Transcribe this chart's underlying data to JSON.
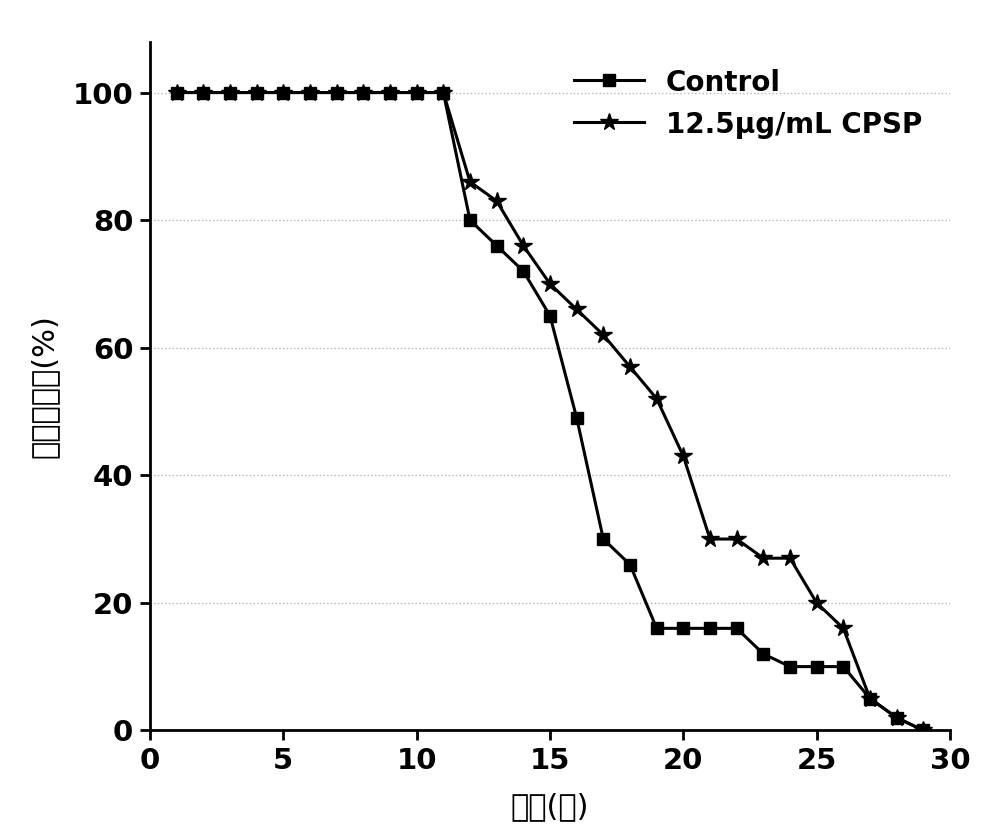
{
  "control_x": [
    1,
    2,
    3,
    4,
    5,
    6,
    7,
    8,
    9,
    10,
    11,
    12,
    13,
    14,
    15,
    16,
    17,
    18,
    19,
    20,
    21,
    22,
    23,
    24,
    25,
    26,
    27,
    28,
    29
  ],
  "control_y": [
    100,
    100,
    100,
    100,
    100,
    100,
    100,
    100,
    100,
    100,
    100,
    80,
    76,
    72,
    65,
    49,
    30,
    26,
    16,
    16,
    16,
    16,
    12,
    10,
    10,
    10,
    5,
    2,
    0
  ],
  "cpsp_x": [
    1,
    2,
    3,
    4,
    5,
    6,
    7,
    8,
    9,
    10,
    11,
    12,
    13,
    14,
    15,
    16,
    17,
    18,
    19,
    20,
    21,
    22,
    23,
    24,
    25,
    26,
    27,
    28,
    29
  ],
  "cpsp_y": [
    100,
    100,
    100,
    100,
    100,
    100,
    100,
    100,
    100,
    100,
    100,
    86,
    83,
    76,
    70,
    66,
    62,
    57,
    52,
    43,
    30,
    30,
    27,
    27,
    20,
    16,
    5,
    2,
    0
  ],
  "xlabel": "时间(天)",
  "ylabel": "线虫存活率(%)",
  "legend_control": "Control",
  "legend_cpsp": "12.5μg/mL CPSP",
  "xlim": [
    0,
    30
  ],
  "ylim": [
    0,
    108
  ],
  "xticks": [
    0,
    5,
    10,
    15,
    20,
    25,
    30
  ],
  "yticks": [
    0,
    20,
    40,
    60,
    80,
    100
  ],
  "background_color": "#ffffff",
  "line_color": "#000000",
  "grid_color": "#b0b0b0"
}
